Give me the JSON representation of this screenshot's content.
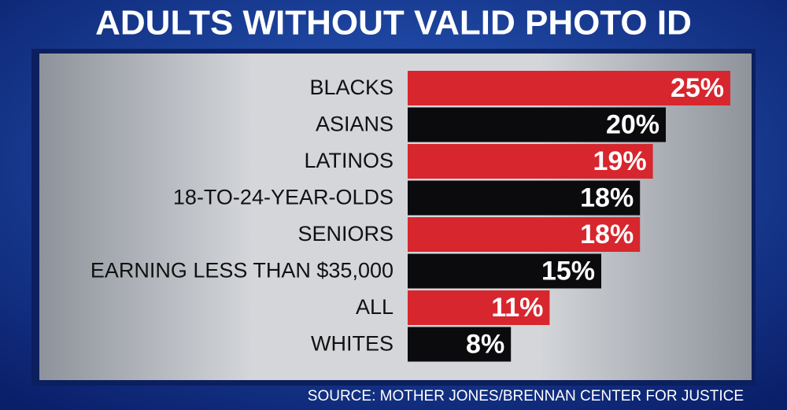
{
  "chart_data": {
    "type": "bar",
    "orientation": "horizontal",
    "title": "ADULTS WITHOUT VALID PHOTO ID",
    "categories": [
      "BLACKS",
      "ASIANS",
      "LATINOS",
      "18-TO-24-YEAR-OLDS",
      "SENIORS",
      "EARNING LESS THAN $35,000",
      "ALL",
      "WHITES"
    ],
    "values": [
      25,
      20,
      19,
      18,
      18,
      15,
      11,
      8
    ],
    "value_labels": [
      "25%",
      "20%",
      "19%",
      "18%",
      "18%",
      "15%",
      "11%",
      "8%"
    ],
    "colors": [
      "#d7262e",
      "#0b0b0d",
      "#d7262e",
      "#0b0b0d",
      "#d7262e",
      "#0b0b0d",
      "#d7262e",
      "#0b0b0d"
    ],
    "source": "SOURCE: MOTHER JONES/BRENNAN CENTER FOR JUSTICE"
  }
}
